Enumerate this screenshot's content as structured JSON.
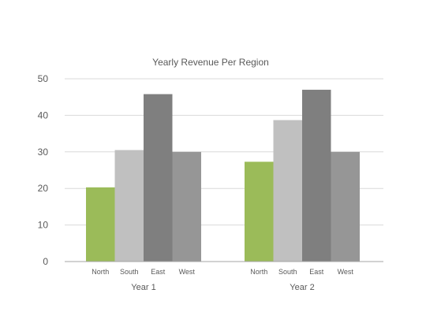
{
  "chart_data": {
    "type": "bar",
    "title": "Yearly Revenue Per Region",
    "xlabel": "",
    "ylabel": "",
    "groups": [
      "Year 1",
      "Year 2"
    ],
    "categories": [
      "North",
      "South",
      "East",
      "West"
    ],
    "series": [
      {
        "group": "Year 1",
        "values": [
          20.3,
          30.5,
          45.8,
          30.0
        ]
      },
      {
        "group": "Year 2",
        "values": [
          27.3,
          38.7,
          47.0,
          30.0
        ]
      }
    ],
    "category_colors": [
      "#9bbb59",
      "#c0c0c0",
      "#7f7f7f",
      "#969696"
    ],
    "ylim": [
      0,
      50
    ],
    "yticks": [
      0,
      10,
      20,
      30,
      40,
      50
    ],
    "grid": true,
    "legend": "none"
  }
}
